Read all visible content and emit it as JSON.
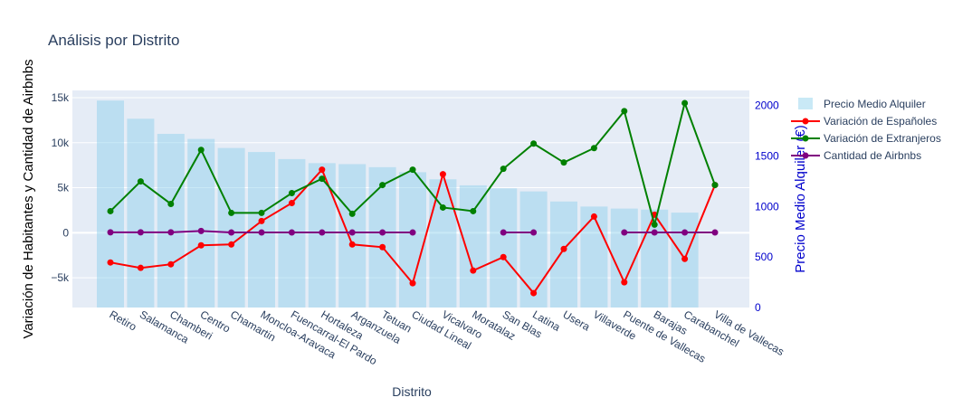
{
  "chart_data": {
    "type": "bar+line",
    "title": "Análisis por Distrito",
    "xlabel": "Distrito",
    "ylabel_left": "Variación de Habitantes y Cantidad de Airbnbs",
    "ylabel_right": "Precio Medio Alquiler (€)",
    "ylim_left": [
      -8300,
      15800
    ],
    "ylim_right": [
      0,
      2150
    ],
    "left_ticks": [
      {
        "v": -5000,
        "label": "−5k"
      },
      {
        "v": 0,
        "label": "0"
      },
      {
        "v": 5000,
        "label": "5k"
      },
      {
        "v": 10000,
        "label": "10k"
      },
      {
        "v": 15000,
        "label": "15k"
      }
    ],
    "right_ticks": [
      {
        "v": 0,
        "label": "0"
      },
      {
        "v": 500,
        "label": "500"
      },
      {
        "v": 1000,
        "label": "1000"
      },
      {
        "v": 1500,
        "label": "1500"
      },
      {
        "v": 2000,
        "label": "2000"
      }
    ],
    "categories": [
      "Retiro",
      "Salamanca",
      "Chamberi",
      "Centro",
      "Chamartin",
      "Moncloa-Aravaca",
      "Fuencarral-El Pardo",
      "Hortaleza",
      "Arganzuela",
      "Tetuan",
      "Ciudad Lineal",
      "Vicalvaro",
      "Moratalaz",
      "San Blas",
      "Latina",
      "Usera",
      "Villaverde",
      "Puente de Vallecas",
      "Barajas",
      "Carabanchel",
      "Villa de Vallecas"
    ],
    "bars": {
      "name": "Precio Medio Alquiler",
      "axis": "right",
      "color": "#87ceeb",
      "values": [
        2050,
        1870,
        1720,
        1670,
        1580,
        1540,
        1470,
        1430,
        1420,
        1390,
        1340,
        1270,
        1210,
        1180,
        1150,
        1050,
        1000,
        980,
        970,
        940,
        null
      ]
    },
    "series": [
      {
        "name": "Variación de Españoles",
        "axis": "left",
        "color": "#ff0000",
        "values": [
          -3300,
          -3900,
          -3500,
          -1400,
          -1300,
          1300,
          3300,
          7000,
          -1300,
          -1600,
          -5600,
          6500,
          -4200,
          -2700,
          -6700,
          -1800,
          1800,
          -5500,
          2000,
          -2900,
          5300
        ]
      },
      {
        "name": "Variación de Extranjeros",
        "axis": "left",
        "color": "#008000",
        "values": [
          2400,
          5700,
          3200,
          9200,
          2200,
          2200,
          4400,
          6000,
          2100,
          5300,
          7000,
          2800,
          2400,
          7100,
          9900,
          7800,
          9400,
          13500,
          900,
          14400,
          5300
        ]
      },
      {
        "name": "Cantidad de Airbnbs",
        "axis": "left",
        "color": "#800080",
        "values": [
          50,
          50,
          50,
          200,
          30,
          30,
          30,
          30,
          30,
          30,
          30,
          null,
          null,
          30,
          30,
          null,
          null,
          30,
          30,
          30,
          30
        ]
      }
    ],
    "legend_position": "top-right"
  }
}
